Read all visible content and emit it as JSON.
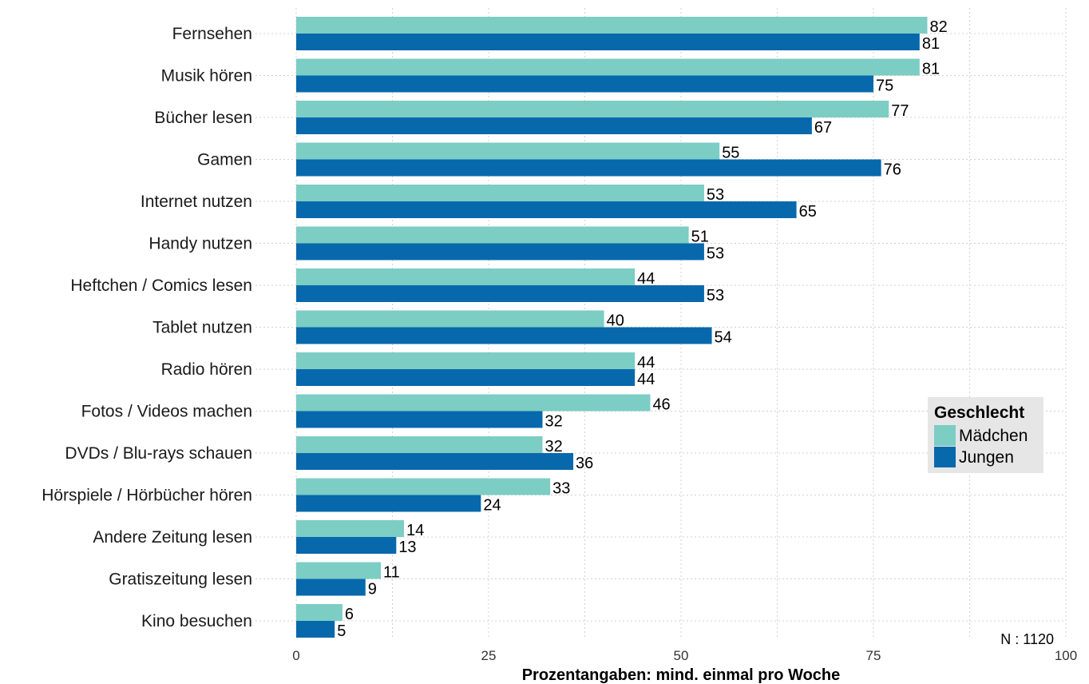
{
  "chart_data": {
    "type": "bar",
    "orientation": "horizontal",
    "categories": [
      "Fernsehen",
      "Musik hören",
      "Bücher lesen",
      "Gamen",
      "Internet nutzen",
      "Handy nutzen",
      "Heftchen / Comics lesen",
      "Tablet nutzen",
      "Radio hören",
      "Fotos / Videos machen",
      "DVDs / Blu-rays schauen",
      "Hörspiele / Hörbücher hören",
      "Andere Zeitung lesen",
      "Gratiszeitung lesen",
      "Kino besuchen"
    ],
    "series": [
      {
        "name": "Mädchen",
        "color": "#7ccdc4",
        "values": [
          82,
          81,
          77,
          55,
          53,
          51,
          44,
          40,
          44,
          46,
          32,
          33,
          14,
          11,
          6
        ]
      },
      {
        "name": "Jungen",
        "color": "#0868ac",
        "values": [
          81,
          75,
          67,
          76,
          65,
          53,
          53,
          54,
          44,
          32,
          36,
          24,
          13,
          9,
          5
        ]
      }
    ],
    "xlabel": "Prozentangaben: mind. einmal pro Woche",
    "xlim": [
      0,
      100
    ],
    "xticks": [
      0,
      25,
      50,
      75,
      100
    ],
    "grid": true,
    "legend": {
      "title": "Geschlecht",
      "position": "right"
    },
    "note": "N : 1120"
  }
}
